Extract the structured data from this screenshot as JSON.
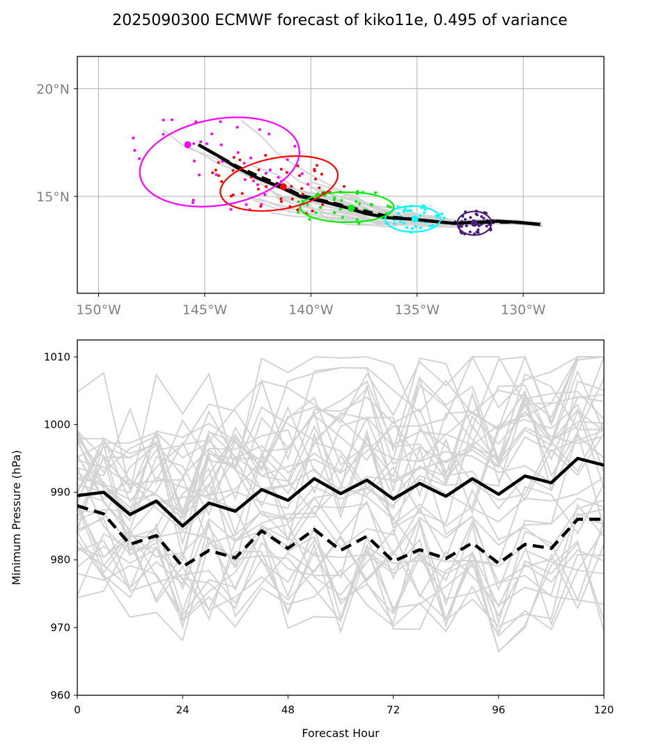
{
  "title": "2025090300 ECMWF forecast of kiko11e, 0.495 of variance",
  "colors": {
    "ensemble": "#d3d3d3",
    "mean": "#000000",
    "grid": "#b0b0b0",
    "geo_tick_text": "#808080",
    "day1": "#4b1b7a",
    "day2": "#00ffff",
    "day3": "#00ee00",
    "day4": "#ff0000",
    "day5": "#ff00ff"
  },
  "chart_data": [
    {
      "type": "line",
      "subtype": "track-map",
      "title": "",
      "x_axis": {
        "range": [
          -151,
          -126.2
        ],
        "ticks": [
          -150,
          -145,
          -140,
          -135,
          -130
        ],
        "tick_labels": [
          "150°W",
          "145°W",
          "140°W",
          "135°W",
          "130°W"
        ]
      },
      "y_axis": {
        "range": [
          10.5,
          21.5
        ],
        "ticks": [
          15,
          20
        ],
        "tick_labels": [
          "15°N",
          "20°N"
        ]
      },
      "grid": true,
      "series": [
        {
          "style": "solid-thick",
          "lon": [
            -129.2,
            -130.3,
            -131.2,
            -132.2,
            -133.3,
            -134.3,
            -135.3,
            -136.3,
            -137.4,
            -138.4,
            -139.4,
            -140.5,
            -141.5,
            -142.5,
            -143.5,
            -144.4,
            -145.3
          ],
          "lat": [
            13.7,
            13.8,
            13.85,
            13.8,
            13.75,
            13.85,
            13.95,
            14.0,
            14.2,
            14.5,
            14.75,
            15.0,
            15.45,
            15.85,
            16.35,
            16.9,
            17.4
          ]
        },
        {
          "style": "dashed-thick",
          "lon": [
            -129.2,
            -130.3,
            -131.2,
            -132.2,
            -133.3,
            -134.3,
            -135.3,
            -136.3,
            -137.4,
            -138.4,
            -139.4,
            -140.5,
            -141.5,
            -142.5,
            -143.5,
            -144.4,
            -145.3
          ],
          "lat": [
            13.7,
            13.8,
            13.8,
            13.8,
            13.75,
            13.85,
            13.95,
            14.05,
            14.3,
            14.55,
            14.8,
            15.05,
            15.55,
            15.95,
            16.4,
            16.9,
            17.4
          ]
        }
      ],
      "ellipses": [
        {
          "color": "day1",
          "center": [
            -132.3,
            13.75
          ],
          "semi_axes_deg": [
            0.8,
            0.55
          ],
          "rotation_deg": 0
        },
        {
          "color": "day2",
          "center": [
            -135.2,
            13.95
          ],
          "semi_axes_deg": [
            1.3,
            0.6
          ],
          "rotation_deg": 0
        },
        {
          "color": "day3",
          "center": [
            -138.3,
            14.5
          ],
          "semi_axes_deg": [
            2.2,
            0.7
          ],
          "rotation_deg": 0
        },
        {
          "color": "day4",
          "center": [
            -141.5,
            15.6
          ],
          "semi_axes_deg": [
            2.8,
            1.2
          ],
          "rotation_deg": -10
        },
        {
          "color": "day5",
          "center": [
            -144.3,
            16.6
          ],
          "semi_axes_deg": [
            3.8,
            2.0
          ],
          "rotation_deg": -10
        }
      ],
      "mean_positions": [
        {
          "color": "day1",
          "lon": -132.3,
          "lat": 13.75
        },
        {
          "color": "day2",
          "lon": -135.1,
          "lat": 13.95
        },
        {
          "color": "day3",
          "lon": -138.1,
          "lat": 14.45
        },
        {
          "color": "day4",
          "lon": -141.3,
          "lat": 15.45
        },
        {
          "color": "day5",
          "lon": -145.8,
          "lat": 17.4
        }
      ]
    },
    {
      "type": "line",
      "title": "",
      "xlabel": "Forecast Hour",
      "ylabel": "Minimum Pressure (hPa)",
      "xlim": [
        0,
        120
      ],
      "ylim": [
        960,
        1012.5
      ],
      "x_ticks": [
        0,
        24,
        48,
        72,
        96,
        120
      ],
      "y_ticks": [
        960,
        970,
        980,
        990,
        1000,
        1010
      ],
      "grid": false,
      "x": [
        0,
        6,
        12,
        18,
        24,
        30,
        36,
        42,
        48,
        54,
        60,
        66,
        72,
        78,
        84,
        90,
        96,
        102,
        108,
        114,
        120
      ],
      "series": [
        {
          "style": "solid-thick",
          "values": [
            989.5,
            990,
            986.7,
            988.7,
            985,
            988.4,
            987.2,
            990.4,
            988.8,
            992,
            989.8,
            991.8,
            989,
            991.3,
            989.4,
            992,
            989.7,
            992.4,
            991.4,
            995,
            994
          ]
        },
        {
          "style": "dashed-thick",
          "values": [
            988,
            986.8,
            982.3,
            983.6,
            979,
            981.4,
            980.3,
            984.3,
            981.7,
            984.5,
            981.4,
            983.5,
            979.8,
            981.5,
            980.2,
            982.5,
            979.5,
            982.3,
            981.7,
            986,
            986
          ]
        }
      ]
    }
  ]
}
